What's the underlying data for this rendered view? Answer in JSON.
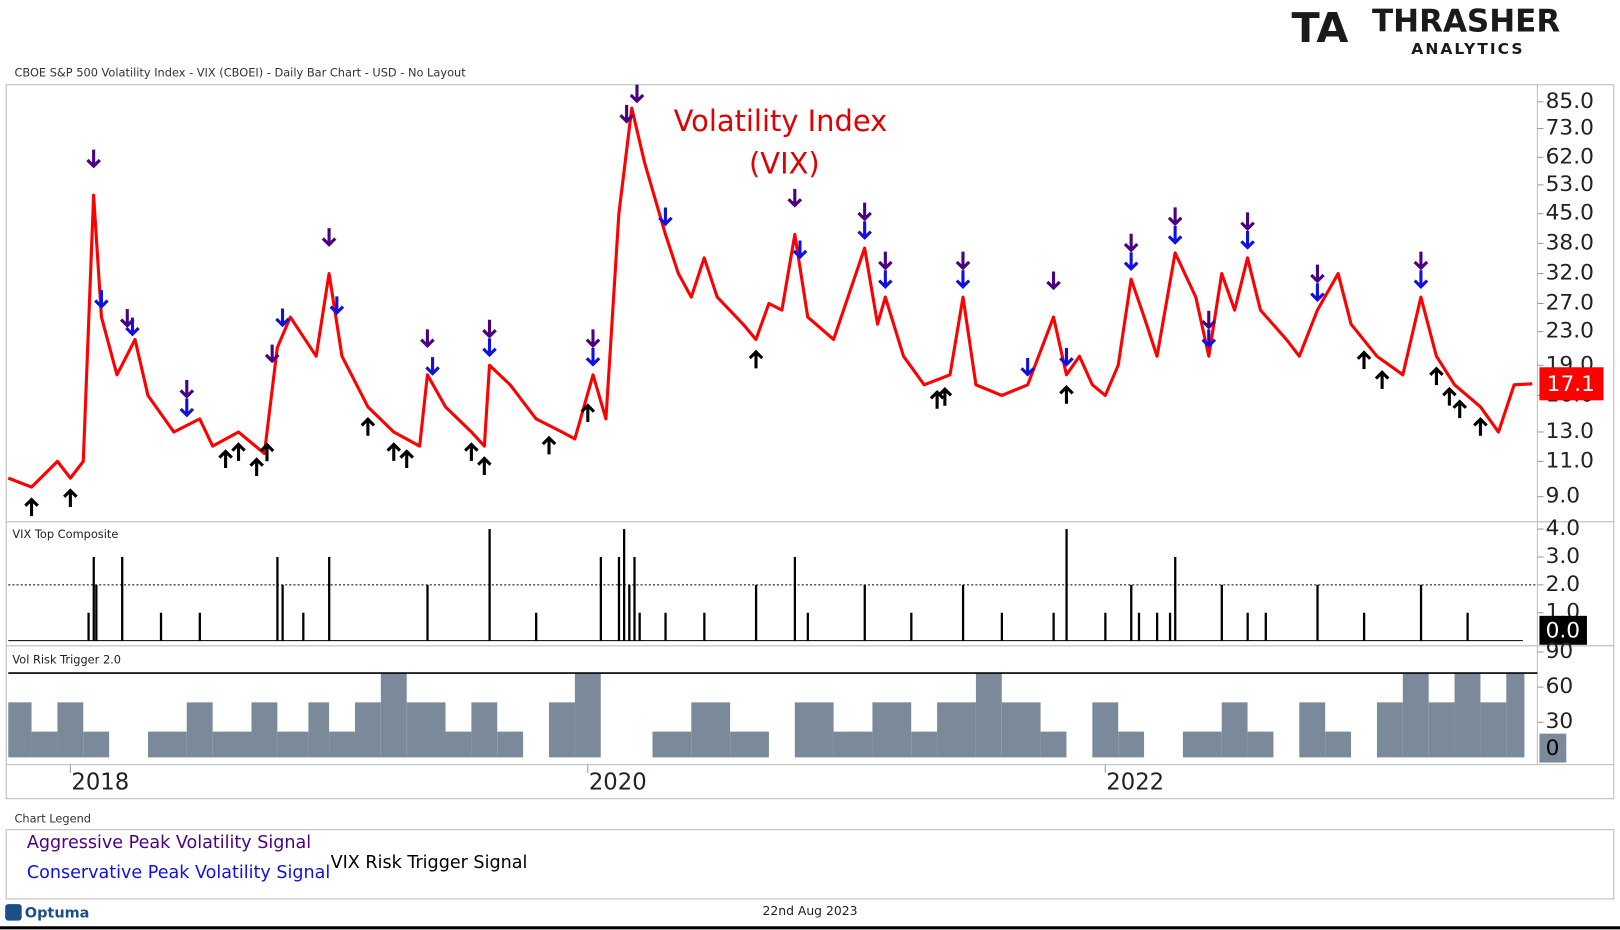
{
  "header": {
    "title": "CBOE S&P 500 Volatility Index - VIX (CBOEI) - Daily Bar Chart - USD - No Layout"
  },
  "logo": {
    "mark": "TA",
    "name": "THRASHER",
    "sub": "ANALYTICS"
  },
  "legend": {
    "title": "Chart Legend",
    "aggressive": "Aggressive Peak Volatility Signal",
    "conservative": "Conservative Peak Volatility Signal",
    "trigger": "VIX Risk Trigger Signal"
  },
  "footer": {
    "brand": "Optuma",
    "date": "22nd Aug 2023"
  },
  "chart_data": [
    {
      "type": "line",
      "annotation": [
        "Volatility Index",
        "(VIX)"
      ],
      "log_scale": true,
      "xlim": [
        2017.76,
        2023.67
      ],
      "xticks": [
        2018,
        2020,
        2022
      ],
      "ylim": [
        7.8,
        92
      ],
      "yticks": [
        {
          "value": 9,
          "label": "9.0"
        },
        {
          "value": 11,
          "label": "11.0"
        },
        {
          "value": 13,
          "label": "13.0"
        },
        {
          "value": 16,
          "label": "16.0"
        },
        {
          "value": 19,
          "label": "19.0"
        },
        {
          "value": 23,
          "label": "23.0"
        },
        {
          "value": 27,
          "label": "27.0"
        },
        {
          "value": 32,
          "label": "32.0"
        },
        {
          "value": 38,
          "label": "38.0"
        },
        {
          "value": 45,
          "label": "45.0"
        },
        {
          "value": 53,
          "label": "53.0"
        },
        {
          "value": 62,
          "label": "62.0"
        },
        {
          "value": 73,
          "label": "73.0"
        },
        {
          "value": 85,
          "label": "85.0"
        }
      ],
      "series": [
        {
          "name": "VIX",
          "color": "#ff0000",
          "x": [
            2017.76,
            2017.85,
            2017.95,
            2018.0,
            2018.05,
            2018.09,
            2018.12,
            2018.18,
            2018.25,
            2018.3,
            2018.4,
            2018.5,
            2018.55,
            2018.65,
            2018.75,
            2018.8,
            2018.85,
            2018.95,
            2019.0,
            2019.05,
            2019.15,
            2019.25,
            2019.35,
            2019.38,
            2019.45,
            2019.55,
            2019.6,
            2019.62,
            2019.7,
            2019.8,
            2019.9,
            2019.95,
            2020.02,
            2020.07,
            2020.12,
            2020.17,
            2020.22,
            2020.3,
            2020.35,
            2020.4,
            2020.45,
            2020.5,
            2020.6,
            2020.65,
            2020.7,
            2020.75,
            2020.8,
            2020.85,
            2020.95,
            2021.07,
            2021.12,
            2021.15,
            2021.22,
            2021.3,
            2021.4,
            2021.45,
            2021.5,
            2021.6,
            2021.7,
            2021.8,
            2021.85,
            2021.9,
            2021.95,
            2022.0,
            2022.05,
            2022.1,
            2022.15,
            2022.2,
            2022.27,
            2022.35,
            2022.4,
            2022.45,
            2022.5,
            2022.55,
            2022.6,
            2022.7,
            2022.75,
            2022.82,
            2022.9,
            2022.95,
            2023.05,
            2023.15,
            2023.22,
            2023.28,
            2023.35,
            2023.45,
            2023.52,
            2023.58,
            2023.65
          ],
          "values": [
            10,
            9.5,
            11,
            10,
            11,
            50,
            25,
            18,
            22,
            16,
            13,
            14,
            12,
            13,
            11.5,
            21,
            25,
            20,
            32,
            20,
            15,
            13,
            12,
            18,
            15,
            13,
            12,
            19,
            17,
            14,
            13,
            12.5,
            18,
            14,
            45,
            82,
            60,
            40,
            32,
            28,
            35,
            28,
            24,
            22,
            27,
            26,
            40,
            25,
            22,
            37,
            24,
            28,
            20,
            17,
            18,
            28,
            17,
            16,
            17,
            25,
            18,
            20,
            17,
            16,
            19,
            31,
            25,
            20,
            36,
            28,
            20,
            32,
            26,
            35,
            26,
            22,
            20,
            26,
            32,
            24,
            20,
            18,
            28,
            20,
            17,
            15,
            13,
            17,
            17.1
          ]
        }
      ],
      "signals": [
        {
          "name": "Aggressive Peak Volatility Signal",
          "color": "#4b0082",
          "x": [
            2018.09,
            2018.22,
            2018.45,
            2018.78,
            2019.0,
            2019.38,
            2019.62,
            2020.02,
            2020.15,
            2020.19,
            2020.8,
            2021.07,
            2021.15,
            2021.45,
            2021.8,
            2022.1,
            2022.27,
            2022.4,
            2022.55,
            2022.82,
            2023.22
          ]
        },
        {
          "name": "Conservative Peak Volatility Signal",
          "color": "#1010e0",
          "x": [
            2018.12,
            2018.24,
            2018.45,
            2018.82,
            2019.03,
            2019.4,
            2019.62,
            2020.02,
            2020.3,
            2020.82,
            2021.07,
            2021.15,
            2021.45,
            2021.7,
            2021.85,
            2022.1,
            2022.27,
            2022.4,
            2022.55,
            2022.82,
            2023.22
          ]
        },
        {
          "name": "VIX Risk Trigger Signal",
          "color": "#000000",
          "x": [
            2017.85,
            2018.0,
            2018.6,
            2018.65,
            2018.72,
            2018.76,
            2019.15,
            2019.25,
            2019.3,
            2019.55,
            2019.6,
            2019.85,
            2020.0,
            2020.65,
            2021.35,
            2021.38,
            2021.85,
            2023.0,
            2023.07,
            2023.28,
            2023.33,
            2023.37,
            2023.45
          ]
        }
      ]
    },
    {
      "type": "spikes",
      "title": "VIX Top Composite",
      "ylim": [
        0,
        4
      ],
      "yticks": [
        {
          "value": 1,
          "label": "1.0"
        },
        {
          "value": 2,
          "label": "2.0"
        },
        {
          "value": 3,
          "label": "3.0"
        },
        {
          "value": 4,
          "label": "4.0"
        }
      ],
      "threshold": 2,
      "current": {
        "value": 0,
        "label": "0.0"
      },
      "x": [
        2018.07,
        2018.09,
        2018.1,
        2018.2,
        2018.35,
        2018.5,
        2018.8,
        2018.82,
        2018.9,
        2019.0,
        2019.38,
        2019.62,
        2019.8,
        2020.05,
        2020.12,
        2020.14,
        2020.16,
        2020.18,
        2020.2,
        2020.3,
        2020.45,
        2020.65,
        2020.8,
        2020.85,
        2021.07,
        2021.25,
        2021.45,
        2021.6,
        2021.8,
        2021.85,
        2022.0,
        2022.1,
        2022.13,
        2022.2,
        2022.25,
        2022.27,
        2022.45,
        2022.55,
        2022.62,
        2022.82,
        2023.0,
        2023.22,
        2023.4
      ],
      "values": [
        1,
        3,
        2,
        3,
        1,
        1,
        3,
        2,
        1,
        3,
        2,
        4,
        1,
        3,
        3,
        4,
        2,
        3,
        1,
        1,
        1,
        2,
        3,
        1,
        2,
        1,
        2,
        1,
        1,
        4,
        1,
        2,
        1,
        1,
        1,
        3,
        2,
        1,
        1,
        2,
        1,
        2,
        1
      ]
    },
    {
      "type": "steps",
      "title": "Vol Risk Trigger 2.0",
      "ylim": [
        0,
        90
      ],
      "yticks": [
        30,
        60,
        90
      ],
      "threshold": 72,
      "current": 0,
      "color": "#7b8a9a",
      "x": [
        2017.76,
        2017.85,
        2017.95,
        2018.05,
        2018.15,
        2018.3,
        2018.45,
        2018.55,
        2018.7,
        2018.8,
        2018.92,
        2019.0,
        2019.1,
        2019.2,
        2019.3,
        2019.45,
        2019.55,
        2019.65,
        2019.75,
        2019.85,
        2019.95,
        2020.05,
        2020.25,
        2020.4,
        2020.55,
        2020.7,
        2020.8,
        2020.95,
        2021.1,
        2021.25,
        2021.35,
        2021.5,
        2021.6,
        2021.75,
        2021.85,
        2021.95,
        2022.05,
        2022.15,
        2022.3,
        2022.45,
        2022.55,
        2022.65,
        2022.75,
        2022.85,
        2022.95,
        2023.05,
        2023.15,
        2023.25,
        2023.35,
        2023.45,
        2023.55,
        2023.62
      ],
      "values": [
        47,
        22,
        47,
        22,
        0,
        22,
        47,
        22,
        47,
        22,
        47,
        22,
        47,
        72,
        47,
        22,
        47,
        22,
        0,
        47,
        72,
        0,
        22,
        47,
        22,
        0,
        47,
        22,
        47,
        22,
        47,
        72,
        47,
        22,
        0,
        47,
        22,
        0,
        22,
        47,
        22,
        0,
        47,
        22,
        0,
        47,
        72,
        47,
        72,
        47,
        72,
        0
      ]
    }
  ]
}
